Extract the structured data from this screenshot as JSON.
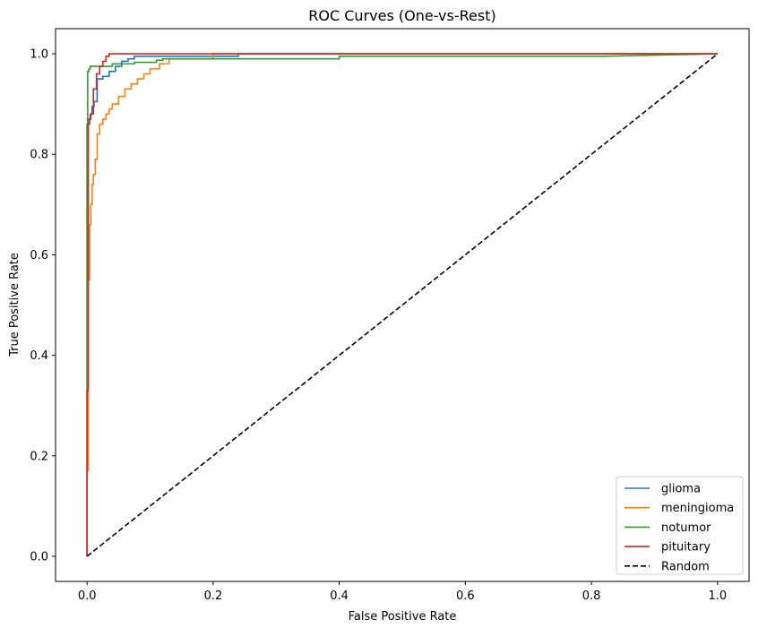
{
  "chart_data": {
    "type": "line",
    "title": "ROC Curves (One-vs-Rest)",
    "xlabel": "False Positive Rate",
    "ylabel": "True Positive Rate",
    "xlim": [
      -0.05,
      1.05
    ],
    "ylim": [
      -0.05,
      1.05
    ],
    "x_ticks": [
      "0.0",
      "0.2",
      "0.4",
      "0.6",
      "0.8",
      "1.0"
    ],
    "y_ticks": [
      "0.0",
      "0.2",
      "0.4",
      "0.6",
      "0.8",
      "1.0"
    ],
    "grid": false,
    "legend_position": "lower-right",
    "series": [
      {
        "name": "glioma",
        "color": "#1f77b4",
        "style": "solid",
        "x": [
          0,
          0,
          0.002,
          0.002,
          0.005,
          0.005,
          0.008,
          0.008,
          0.011,
          0.011,
          0.016,
          0.016,
          0.025,
          0.025,
          0.035,
          0.035,
          0.045,
          0.045,
          0.055,
          0.055,
          0.065,
          0.065,
          0.075,
          0.075,
          0.24,
          0.24,
          1.0
        ],
        "y": [
          0,
          0.86,
          0.86,
          0.87,
          0.87,
          0.88,
          0.88,
          0.895,
          0.895,
          0.905,
          0.905,
          0.95,
          0.95,
          0.955,
          0.955,
          0.965,
          0.965,
          0.975,
          0.975,
          0.985,
          0.985,
          0.99,
          0.99,
          0.995,
          0.995,
          1.0,
          1.0
        ]
      },
      {
        "name": "meningioma",
        "color": "#ff7f0e",
        "style": "solid",
        "x": [
          0,
          0,
          0.002,
          0.002,
          0.004,
          0.004,
          0.006,
          0.006,
          0.008,
          0.008,
          0.01,
          0.01,
          0.013,
          0.013,
          0.016,
          0.016,
          0.02,
          0.02,
          0.025,
          0.025,
          0.03,
          0.03,
          0.035,
          0.035,
          0.04,
          0.04,
          0.05,
          0.05,
          0.06,
          0.06,
          0.07,
          0.07,
          0.08,
          0.08,
          0.09,
          0.09,
          0.1,
          0.1,
          0.115,
          0.115,
          0.13,
          0.13,
          0.2,
          0.2,
          1.0
        ],
        "y": [
          0,
          0.17,
          0.17,
          0.55,
          0.55,
          0.66,
          0.66,
          0.7,
          0.7,
          0.74,
          0.74,
          0.76,
          0.76,
          0.79,
          0.79,
          0.84,
          0.84,
          0.86,
          0.86,
          0.87,
          0.87,
          0.88,
          0.88,
          0.89,
          0.89,
          0.9,
          0.9,
          0.915,
          0.915,
          0.93,
          0.93,
          0.94,
          0.94,
          0.95,
          0.95,
          0.96,
          0.96,
          0.97,
          0.97,
          0.98,
          0.98,
          0.99,
          0.99,
          1.0,
          1.0
        ]
      },
      {
        "name": "notumor",
        "color": "#2ca02c",
        "style": "solid",
        "x": [
          0,
          0,
          0.001,
          0.001,
          0.003,
          0.003,
          0.005,
          0.005,
          0.04,
          0.04,
          0.075,
          0.075,
          0.11,
          0.11,
          0.12,
          0.12,
          0.4,
          0.4,
          0.82,
          1.0
        ],
        "y": [
          0,
          0.86,
          0.86,
          0.965,
          0.965,
          0.97,
          0.97,
          0.975,
          0.975,
          0.98,
          0.98,
          0.983,
          0.983,
          0.987,
          0.987,
          0.99,
          0.99,
          0.995,
          0.995,
          1.0
        ]
      },
      {
        "name": "pituitary",
        "color": "#d62728",
        "style": "solid",
        "x": [
          0,
          0,
          0.002,
          0.002,
          0.004,
          0.004,
          0.006,
          0.006,
          0.01,
          0.01,
          0.015,
          0.015,
          0.02,
          0.02,
          0.025,
          0.025,
          0.03,
          0.03,
          0.035,
          0.035,
          1.0
        ],
        "y": [
          0,
          0.33,
          0.33,
          0.86,
          0.86,
          0.87,
          0.87,
          0.88,
          0.88,
          0.93,
          0.93,
          0.96,
          0.96,
          0.975,
          0.975,
          0.985,
          0.985,
          0.995,
          0.995,
          1.0,
          1.0
        ]
      },
      {
        "name": "Random",
        "color": "#000000",
        "style": "dashed",
        "x": [
          0,
          1
        ],
        "y": [
          0,
          1
        ]
      }
    ]
  }
}
